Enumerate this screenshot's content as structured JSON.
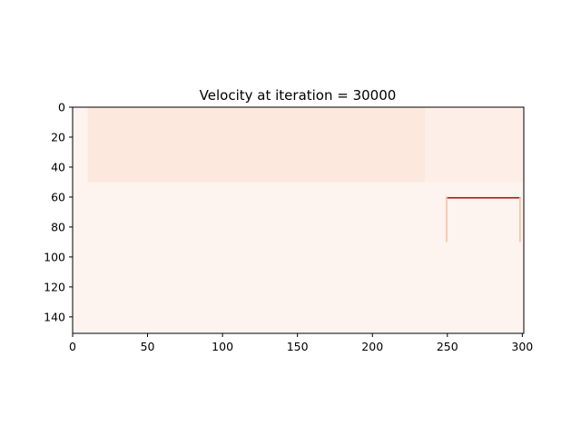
{
  "chart_data": {
    "type": "heatmap",
    "title": "Velocity at iteration = 30000",
    "xlabel": "",
    "ylabel": "",
    "xlim": [
      0,
      301
    ],
    "ylim": [
      151,
      0
    ],
    "x_ticks": [
      0,
      50,
      100,
      150,
      200,
      250,
      300
    ],
    "y_ticks": [
      0,
      20,
      40,
      60,
      80,
      100,
      120,
      140
    ],
    "colormap": "Reds",
    "background_color": "#fdf3ef",
    "regions": [
      {
        "x_range": [
          10,
          235
        ],
        "y_range": [
          0,
          50
        ],
        "color": "#fce8dd"
      },
      {
        "x_range": [
          235,
          301
        ],
        "y_range": [
          0,
          50
        ],
        "color": "#fdefe8"
      }
    ],
    "features": [
      {
        "name": "lid-top",
        "x_range": [
          249,
          299
        ],
        "y_range": [
          60,
          61
        ],
        "color": "#b31b1b"
      },
      {
        "name": "left-wall",
        "x_range": [
          249,
          250
        ],
        "y_range": [
          60,
          90
        ],
        "color": "#f4c3a5"
      },
      {
        "name": "right-wall",
        "x_range": [
          298,
          299
        ],
        "y_range": [
          60,
          90
        ],
        "color": "#f4c3a5"
      }
    ]
  }
}
